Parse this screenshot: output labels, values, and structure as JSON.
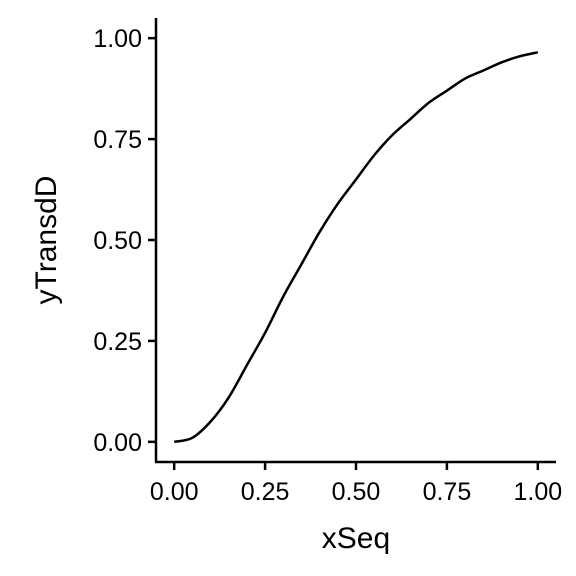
{
  "chart_data": {
    "type": "line",
    "title": "",
    "xlabel": "xSeq",
    "ylabel": "yTransdD",
    "xlim": [
      -0.05,
      1.05
    ],
    "ylim": [
      -0.05,
      1.05
    ],
    "x_ticks": [
      0.0,
      0.25,
      0.5,
      0.75,
      1.0
    ],
    "x_tick_labels": [
      "0.00",
      "0.25",
      "0.50",
      "0.75",
      "1.00"
    ],
    "y_ticks": [
      0.0,
      0.25,
      0.5,
      0.75,
      1.0
    ],
    "y_tick_labels": [
      "0.00",
      "0.25",
      "0.50",
      "0.75",
      "1.00"
    ],
    "grid": false,
    "legend": "none",
    "line_color": "#000000",
    "series": [
      {
        "x": [
          0.0,
          0.05,
          0.1,
          0.15,
          0.2,
          0.25,
          0.3,
          0.35,
          0.4,
          0.45,
          0.5,
          0.55,
          0.6,
          0.65,
          0.7,
          0.75,
          0.8,
          0.85,
          0.9,
          0.95,
          1.0
        ],
        "values": [
          0.0,
          0.01,
          0.05,
          0.11,
          0.19,
          0.27,
          0.36,
          0.44,
          0.52,
          0.59,
          0.65,
          0.71,
          0.76,
          0.8,
          0.84,
          0.87,
          0.9,
          0.92,
          0.94,
          0.955,
          0.965
        ]
      }
    ]
  }
}
